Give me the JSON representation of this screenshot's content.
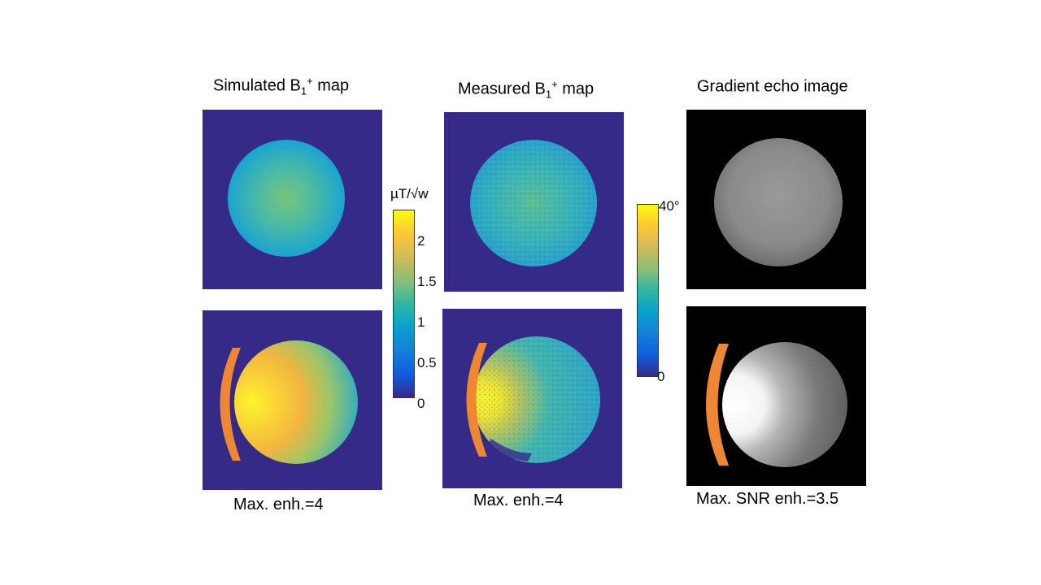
{
  "columns": [
    {
      "title_pre": "Simulated B",
      "title_sub": "1",
      "title_sup": "+",
      "title_post": " map",
      "caption": "Max. enh.=4"
    },
    {
      "title_pre": "Measured B",
      "title_sub": "1",
      "title_sup": "+",
      "title_post": " map",
      "caption": "Max. enh.=4"
    },
    {
      "title_pre": "Gradient echo image",
      "title_sub": "",
      "title_sup": "",
      "title_post": "",
      "caption": "Max. SNR enh.=3.5"
    }
  ],
  "colorbar_b1": {
    "unit": "µT/√w",
    "ticks": [
      "2",
      "1.5",
      "1",
      "0.5",
      "0"
    ]
  },
  "colorbar_flip": {
    "ticks": [
      "40°",
      "0"
    ]
  },
  "colors": {
    "background_map": "#352a87",
    "coil": "#ee8733",
    "gre_background": "#000000"
  }
}
